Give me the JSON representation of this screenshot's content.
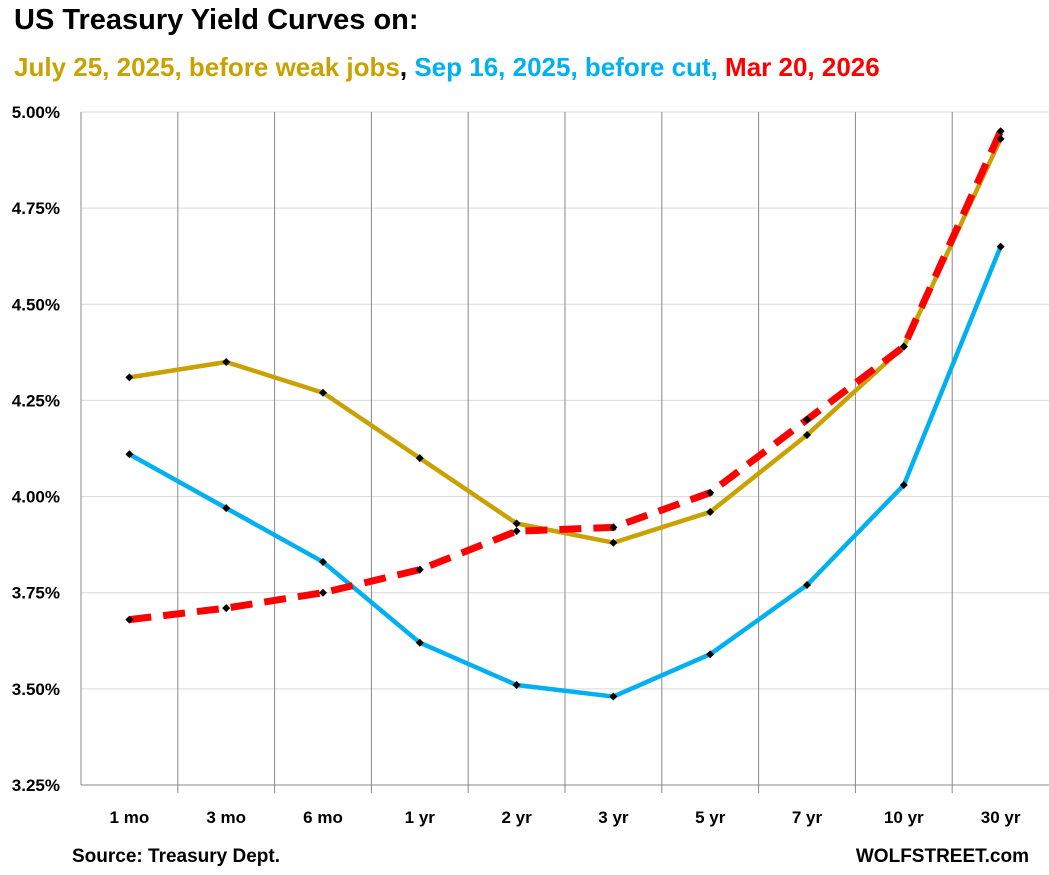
{
  "chart_data": {
    "type": "line",
    "title": "US Treasury Yield Curves on:",
    "subtitle_parts": [
      {
        "text": "July 25, 2025, before weak jobs",
        "color": "#C9A100"
      },
      {
        "text": ", ",
        "color": "#000000"
      },
      {
        "text": "Sep 16, 2025, before cut, ",
        "color": "#00B0F0"
      },
      {
        "text": "Mar 20, 2026",
        "color": "#FF0000"
      }
    ],
    "categories": [
      "1 mo",
      "3 mo",
      "6 mo",
      "1 yr",
      "2 yr",
      "3 yr",
      "5 yr",
      "7 yr",
      "10 yr",
      "30 yr"
    ],
    "yticks": [
      3.25,
      3.5,
      3.75,
      4.0,
      4.25,
      4.5,
      4.75,
      5.0
    ],
    "ytick_labels": [
      "3.25%",
      "3.50%",
      "3.75%",
      "4.00%",
      "4.25%",
      "4.50%",
      "4.75%",
      "5.00%"
    ],
    "ylim": [
      3.25,
      5.0
    ],
    "xlabel": "",
    "ylabel": "",
    "grid": "vertical category separators and horizontal light gridlines",
    "series": [
      {
        "name": "July 25, 2025, before weak jobs",
        "color": "#C9A100",
        "dash": false,
        "values": [
          4.31,
          4.35,
          4.27,
          4.1,
          3.93,
          3.88,
          3.96,
          4.16,
          4.39,
          4.93
        ]
      },
      {
        "name": "Sep 16, 2025, before cut",
        "color": "#00B0F0",
        "dash": false,
        "values": [
          4.11,
          3.97,
          3.83,
          3.62,
          3.51,
          3.48,
          3.59,
          3.77,
          4.03,
          4.65
        ]
      },
      {
        "name": "Mar 20, 2026",
        "color": "#FF0000",
        "dash": true,
        "values": [
          3.68,
          3.71,
          3.75,
          3.81,
          3.91,
          3.92,
          4.01,
          4.2,
          4.39,
          4.95
        ]
      }
    ]
  },
  "footer": {
    "source": "Source: Treasury Dept.",
    "brand": "WOLFSTREET.com"
  }
}
